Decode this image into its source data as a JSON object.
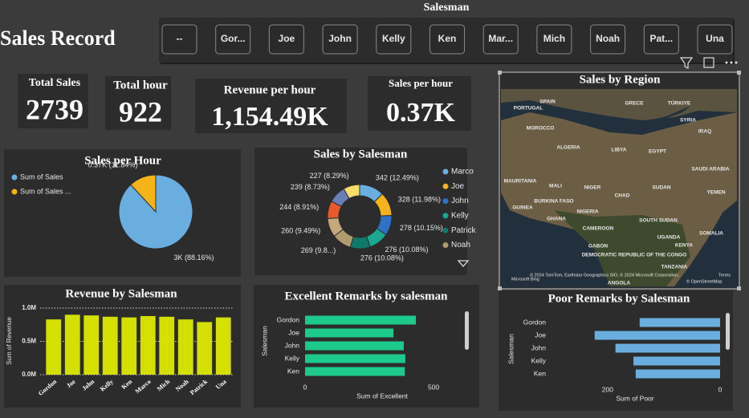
{
  "header": {
    "title": "Sales Record"
  },
  "slicer": {
    "title": "Salesman",
    "options": [
      "--",
      "Gor...",
      "Joe",
      "John",
      "Kelly",
      "Ken",
      "Mar...",
      "Mich",
      "Noah",
      "Pat...",
      "Una"
    ]
  },
  "cards": [
    {
      "label": "Total Sales",
      "value": 2739
    },
    {
      "label": "Total hour",
      "value": 922
    },
    {
      "label": "Revenue per hour",
      "value": "1,154.49K"
    },
    {
      "label": "Sales per hour",
      "value": "0.37K"
    }
  ],
  "chart_data": [
    {
      "type": "pie",
      "title": "Sales per Hour",
      "categories": [
        "Sum of Sales",
        "Sum of Sales ..."
      ],
      "values": [
        88.16,
        11.84
      ],
      "value_labels": [
        "3K (88.16%)",
        "0.37K (11.84%)"
      ],
      "colors": [
        "#6aaee0",
        "#f5b31a"
      ]
    },
    {
      "type": "donut",
      "title": "Sales by Salesman",
      "categories": [
        "Marco",
        "Joe",
        "John",
        "Kelly",
        "Patrick",
        "Noah",
        null,
        null,
        null,
        null
      ],
      "values": [
        342,
        328,
        278,
        276,
        276,
        269,
        260,
        244,
        239,
        227
      ],
      "value_labels": [
        "342 (12.49%)",
        "328 (11.98%)",
        "278 (10.15%)",
        "276 (10.08%)",
        "276 (10.08%)",
        "269 (9.8...)",
        "260 (9.49%)",
        "244 (8.91%)",
        "239 (8.73%)",
        "227 (8.29%)"
      ],
      "colors": [
        "#6aaee0",
        "#f5b31a",
        "#2e72c8",
        "#1aa890",
        "#0e7a6a",
        "#b09a70",
        "#c4a77a",
        "#e8592c",
        "#6a7fb8",
        "#f7dd6b"
      ]
    },
    {
      "type": "map",
      "title": "Sales by Region",
      "labels": [
        "SPAIN",
        "PORTUGAL",
        "GRECE",
        "TÜRKIYE",
        "SYRIA",
        "IRAQ",
        "MOROCCO",
        "ALGERIA",
        "LIBYA",
        "EGYPT",
        "SAUDI ARABIA",
        "MAURITANIA",
        "MALI",
        "NIGER",
        "CHAD",
        "SUDAN",
        "YEMEN",
        "BURKINA FASO",
        "GUINEA",
        "NIGERIA",
        "GHANA",
        "SOUTH SUDAN",
        "CAMEROON",
        "SOMALIA",
        "UGANDA",
        "KENYA",
        "GABON",
        "DEMOCRATIC REPUBLIC OF THE CONGO",
        "TANZANIA",
        "ANGOLA"
      ],
      "attribution": [
        "Microsoft Bing",
        "© 2024 TomTom, Earthstar Geographics SIO, © 2024 Microsoft Corporation,",
        "Terms",
        "© OpenStreetMap"
      ]
    },
    {
      "type": "bar",
      "title": "Revenue by Salesman",
      "categories": [
        "Gordon",
        "Joe",
        "John",
        "Kelly",
        "Ken",
        "Marco",
        "Mich",
        "Noah",
        "Patrick",
        "Una"
      ],
      "values": [
        0.83,
        0.9,
        0.89,
        0.87,
        0.86,
        0.88,
        0.87,
        0.83,
        0.79,
        0.86
      ],
      "color": "#d4e000",
      "ylabel": "Sum of Revenue",
      "ylim": [
        0,
        1.0
      ],
      "yticks": [
        {
          "value": 0,
          "label": "0.0M"
        },
        {
          "value": 0.5,
          "label": "0.5M"
        },
        {
          "value": 1,
          "label": "1.0M"
        }
      ],
      "grid": true
    },
    {
      "type": "hbar",
      "title": "Excellent Remarks by salesman",
      "categories": [
        "Gordon",
        "Joe",
        "John",
        "Kelly",
        "Ken"
      ],
      "values": [
        431,
        344,
        384,
        390,
        388
      ],
      "color": "#1ec98c",
      "xlabel": "Sum of Excellent",
      "ylabel": "Salesman",
      "xlim": [
        0,
        562
      ],
      "xticks": [
        0,
        500
      ]
    },
    {
      "type": "hbar",
      "title": "Poor Remarks by Salesman",
      "categories": [
        "Gordon",
        "Joe",
        "John",
        "Kelly",
        "Ken"
      ],
      "values": [
        143,
        223,
        186,
        154,
        150
      ],
      "color": "#6aaee0",
      "xlabel": "Sum of Poor",
      "ylabel": "Salesman",
      "xlim": [
        234,
        0
      ],
      "xticks": [
        200,
        0
      ]
    }
  ]
}
